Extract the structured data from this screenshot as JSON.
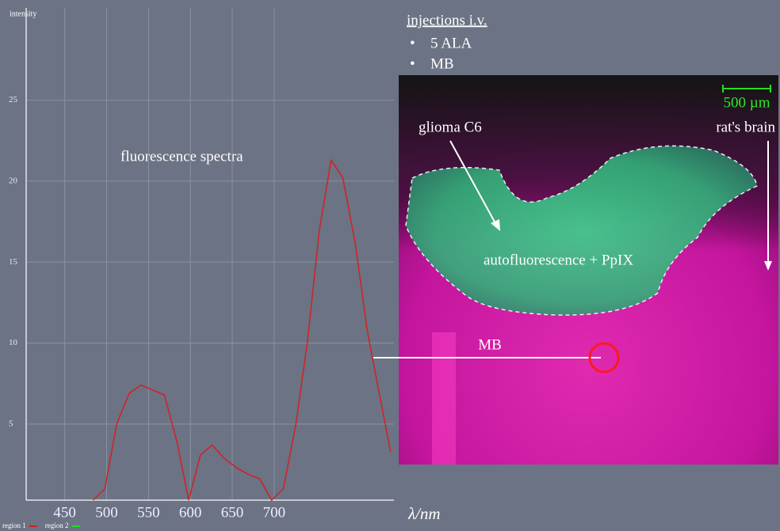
{
  "chart_data": {
    "type": "line",
    "title": "fluorescence spectra",
    "y_label": "intensity",
    "x_label": "λ/nm",
    "x": [
      484,
      498,
      512,
      527,
      541,
      569,
      584,
      598,
      612,
      626,
      640,
      655,
      669,
      683,
      697,
      711,
      726,
      740,
      754,
      768,
      782,
      797,
      811,
      825,
      839
    ],
    "series": [
      {
        "name": "region 1",
        "color": "#d42020",
        "values": [
          0.3,
          1.0,
          5.0,
          6.9,
          7.4,
          6.8,
          3.9,
          0.3,
          3.1,
          3.7,
          2.9,
          2.3,
          1.9,
          1.6,
          0.3,
          1.0,
          5.0,
          10.2,
          17.0,
          21.3,
          20.2,
          16.1,
          10.8,
          7.0,
          3.3
        ]
      },
      {
        "name": "region 2",
        "color": "#22dd22",
        "values": [
          null,
          null,
          null,
          null,
          null,
          null,
          null,
          null,
          null,
          null,
          null,
          null,
          null,
          null,
          null,
          null,
          null,
          null,
          null,
          null,
          null,
          null,
          null,
          null,
          null
        ]
      }
    ],
    "xlim": [
      404,
      843
    ],
    "ylim": [
      0.3,
      30.7
    ],
    "xticks": [
      450,
      500,
      550,
      600,
      650,
      700
    ],
    "yticks": [
      5,
      10,
      15,
      20,
      25
    ],
    "grid": true
  },
  "image": {
    "heading": "injections i.v.",
    "bullets": [
      "5 ALA",
      "MB"
    ],
    "scale_bar": "500 µm",
    "labels": [
      "glioma C6",
      "rat's brain",
      "autofluorescence + PpIX",
      "MB"
    ]
  }
}
